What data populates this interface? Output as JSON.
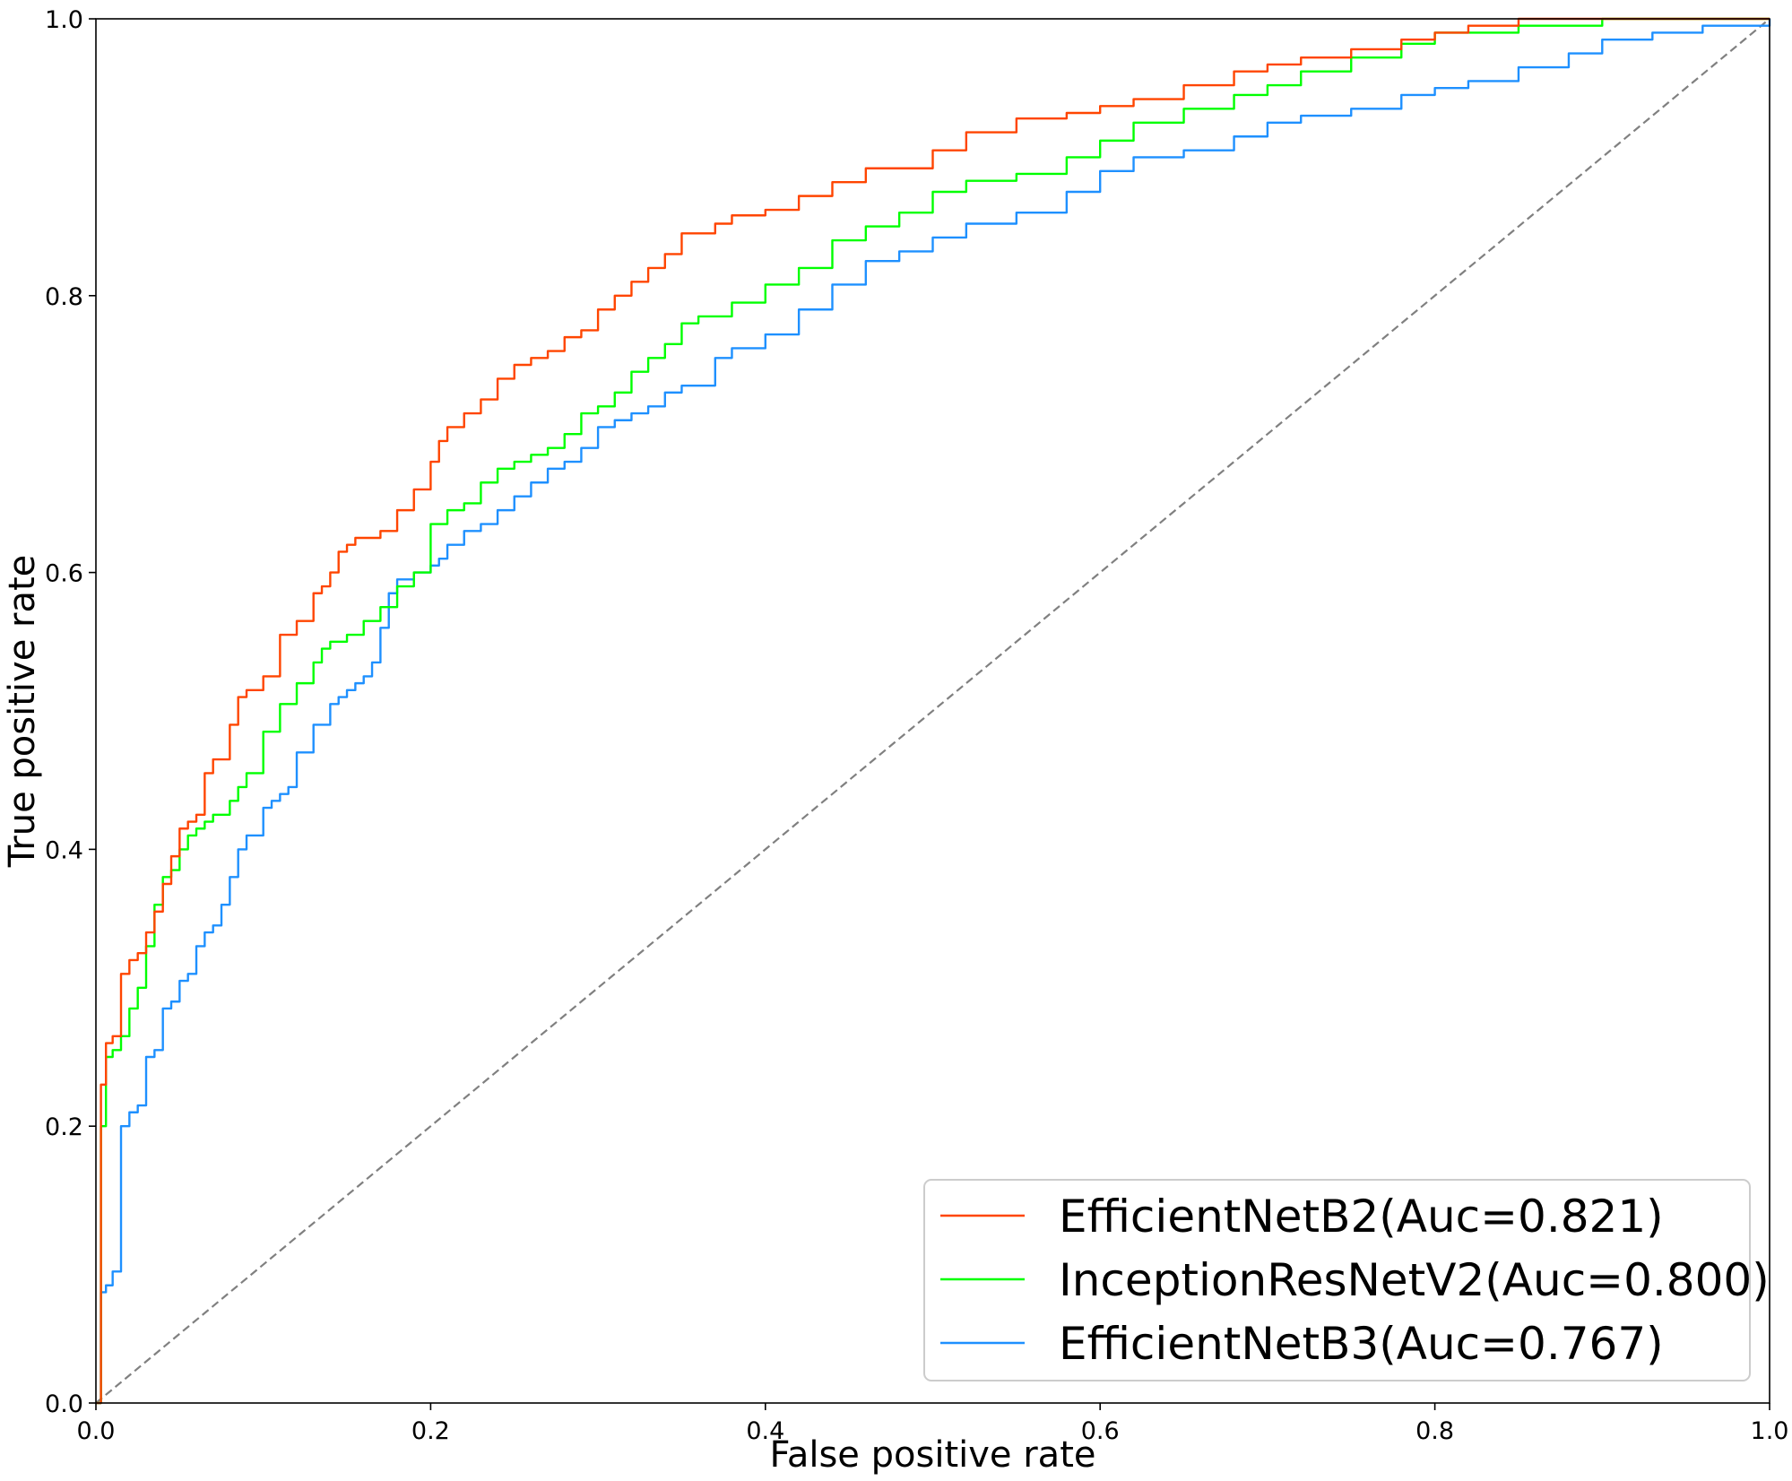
{
  "chart_data": {
    "type": "line",
    "title": "",
    "xlabel": "False positive rate",
    "ylabel": "True positive rate",
    "xlim": [
      0.0,
      1.0
    ],
    "ylim": [
      0.0,
      1.0
    ],
    "x_ticks": [
      "0.0",
      "0.2",
      "0.4",
      "0.6",
      "0.8",
      "1.0"
    ],
    "y_ticks": [
      "0.0",
      "0.2",
      "0.4",
      "0.6",
      "0.8",
      "1.0"
    ],
    "grid": false,
    "legend_position": "lower-right",
    "reference_line": {
      "x": [
        0,
        1
      ],
      "y": [
        0,
        1
      ],
      "color": "#808080",
      "style": "dashed"
    },
    "series": [
      {
        "name": "EfficientNetB2(Auc=0.821)",
        "color": "#ff4500",
        "x": [
          0,
          0.003,
          0.006,
          0.01,
          0.015,
          0.02,
          0.025,
          0.03,
          0.035,
          0.04,
          0.045,
          0.05,
          0.055,
          0.06,
          0.065,
          0.07,
          0.08,
          0.085,
          0.09,
          0.1,
          0.11,
          0.12,
          0.13,
          0.135,
          0.14,
          0.145,
          0.15,
          0.155,
          0.16,
          0.17,
          0.18,
          0.19,
          0.2,
          0.205,
          0.21,
          0.22,
          0.23,
          0.24,
          0.25,
          0.26,
          0.27,
          0.28,
          0.29,
          0.3,
          0.31,
          0.32,
          0.33,
          0.34,
          0.35,
          0.37,
          0.38,
          0.4,
          0.42,
          0.44,
          0.46,
          0.5,
          0.52,
          0.55,
          0.58,
          0.6,
          0.62,
          0.65,
          0.68,
          0.7,
          0.72,
          0.75,
          0.78,
          0.8,
          0.82,
          0.85,
          0.9,
          0.95,
          1.0
        ],
        "y": [
          0,
          0.23,
          0.26,
          0.265,
          0.31,
          0.32,
          0.325,
          0.34,
          0.355,
          0.375,
          0.395,
          0.415,
          0.42,
          0.425,
          0.455,
          0.465,
          0.49,
          0.51,
          0.515,
          0.525,
          0.555,
          0.565,
          0.585,
          0.59,
          0.6,
          0.615,
          0.62,
          0.625,
          0.625,
          0.63,
          0.645,
          0.66,
          0.68,
          0.695,
          0.705,
          0.715,
          0.725,
          0.74,
          0.75,
          0.755,
          0.76,
          0.77,
          0.775,
          0.79,
          0.8,
          0.81,
          0.82,
          0.83,
          0.845,
          0.852,
          0.858,
          0.862,
          0.872,
          0.882,
          0.892,
          0.905,
          0.918,
          0.928,
          0.932,
          0.937,
          0.942,
          0.952,
          0.962,
          0.967,
          0.972,
          0.978,
          0.985,
          0.99,
          0.995,
          1.0,
          1.0,
          1.0,
          1.0
        ]
      },
      {
        "name": "InceptionResNetV2(Auc=0.800)",
        "color": "#00ff00",
        "x": [
          0,
          0.003,
          0.006,
          0.01,
          0.015,
          0.02,
          0.025,
          0.03,
          0.035,
          0.04,
          0.045,
          0.05,
          0.055,
          0.06,
          0.065,
          0.07,
          0.08,
          0.085,
          0.09,
          0.1,
          0.11,
          0.12,
          0.13,
          0.135,
          0.14,
          0.15,
          0.16,
          0.17,
          0.18,
          0.19,
          0.2,
          0.21,
          0.22,
          0.23,
          0.24,
          0.25,
          0.26,
          0.27,
          0.28,
          0.29,
          0.3,
          0.31,
          0.32,
          0.33,
          0.34,
          0.35,
          0.36,
          0.38,
          0.4,
          0.42,
          0.44,
          0.46,
          0.48,
          0.5,
          0.52,
          0.55,
          0.58,
          0.6,
          0.62,
          0.65,
          0.68,
          0.7,
          0.72,
          0.75,
          0.78,
          0.8,
          0.85,
          0.9,
          0.95,
          1.0
        ],
        "y": [
          0,
          0.2,
          0.25,
          0.255,
          0.265,
          0.285,
          0.3,
          0.33,
          0.36,
          0.38,
          0.385,
          0.4,
          0.41,
          0.415,
          0.42,
          0.425,
          0.435,
          0.445,
          0.455,
          0.485,
          0.505,
          0.52,
          0.535,
          0.545,
          0.55,
          0.555,
          0.565,
          0.575,
          0.59,
          0.6,
          0.635,
          0.645,
          0.65,
          0.665,
          0.675,
          0.68,
          0.685,
          0.69,
          0.7,
          0.715,
          0.72,
          0.73,
          0.745,
          0.755,
          0.765,
          0.78,
          0.785,
          0.795,
          0.808,
          0.82,
          0.84,
          0.85,
          0.86,
          0.875,
          0.883,
          0.888,
          0.9,
          0.912,
          0.925,
          0.935,
          0.945,
          0.952,
          0.962,
          0.972,
          0.982,
          0.99,
          0.995,
          1.0,
          1.0,
          1.0
        ]
      },
      {
        "name": "EfficientNetB3(Auc=0.767)",
        "color": "#1e90ff",
        "x": [
          0,
          0.003,
          0.006,
          0.01,
          0.015,
          0.02,
          0.025,
          0.03,
          0.035,
          0.04,
          0.045,
          0.05,
          0.055,
          0.06,
          0.065,
          0.07,
          0.075,
          0.08,
          0.085,
          0.09,
          0.1,
          0.105,
          0.11,
          0.115,
          0.12,
          0.13,
          0.14,
          0.145,
          0.15,
          0.155,
          0.16,
          0.165,
          0.17,
          0.175,
          0.18,
          0.19,
          0.2,
          0.205,
          0.21,
          0.22,
          0.23,
          0.24,
          0.25,
          0.26,
          0.27,
          0.28,
          0.29,
          0.3,
          0.31,
          0.32,
          0.33,
          0.34,
          0.35,
          0.37,
          0.38,
          0.4,
          0.42,
          0.44,
          0.46,
          0.48,
          0.5,
          0.52,
          0.55,
          0.58,
          0.6,
          0.62,
          0.65,
          0.68,
          0.7,
          0.72,
          0.75,
          0.78,
          0.8,
          0.82,
          0.85,
          0.88,
          0.9,
          0.93,
          0.96,
          1.0
        ],
        "y": [
          0,
          0.08,
          0.085,
          0.095,
          0.2,
          0.21,
          0.215,
          0.25,
          0.255,
          0.285,
          0.29,
          0.305,
          0.31,
          0.33,
          0.34,
          0.345,
          0.36,
          0.38,
          0.4,
          0.41,
          0.43,
          0.435,
          0.44,
          0.445,
          0.47,
          0.49,
          0.505,
          0.51,
          0.515,
          0.52,
          0.525,
          0.535,
          0.56,
          0.585,
          0.595,
          0.6,
          0.605,
          0.61,
          0.62,
          0.63,
          0.635,
          0.645,
          0.655,
          0.665,
          0.675,
          0.68,
          0.69,
          0.705,
          0.71,
          0.715,
          0.72,
          0.73,
          0.735,
          0.755,
          0.762,
          0.772,
          0.79,
          0.808,
          0.825,
          0.832,
          0.842,
          0.852,
          0.86,
          0.875,
          0.89,
          0.9,
          0.905,
          0.915,
          0.925,
          0.93,
          0.935,
          0.945,
          0.95,
          0.955,
          0.965,
          0.975,
          0.985,
          0.99,
          0.995,
          1.0
        ]
      }
    ]
  }
}
